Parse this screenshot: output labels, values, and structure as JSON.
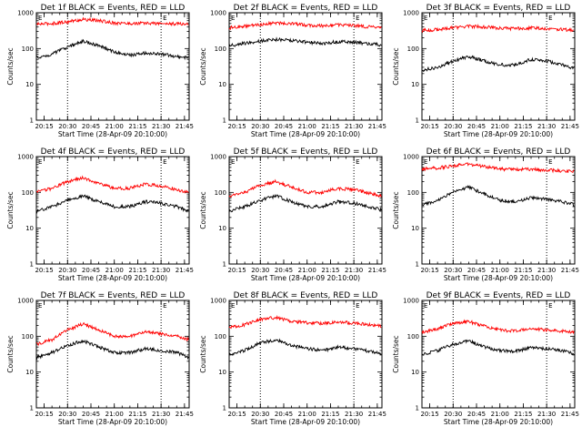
{
  "figure": {
    "rows": 3,
    "cols": 3
  },
  "chart_data": [
    {
      "type": "line",
      "title": "Det 1f BLACK = Events, RED = LLD",
      "xlabel": "Start Time (28-Apr-09 20:10:00)",
      "ylabel": "Counts/sec",
      "yscale": "log",
      "ylim": [
        1,
        1000
      ],
      "xlim_minutes": [
        0,
        98
      ],
      "x_tick_labels": [
        "20:15",
        "20:30",
        "20:45",
        "21:00",
        "21:15",
        "21:30",
        "21:45"
      ],
      "y_tick_labels": [
        "1",
        "10",
        "100",
        "1000"
      ],
      "marker_lines": [
        "20:30",
        "21:30"
      ],
      "corner_markers": [
        "E",
        "E"
      ],
      "x": [
        "20:10",
        "20:20",
        "20:30",
        "20:40",
        "20:50",
        "21:00",
        "21:10",
        "21:20",
        "21:30",
        "21:40",
        "21:48"
      ],
      "series": [
        {
          "color": "#ff0000",
          "values": [
            480,
            500,
            560,
            650,
            600,
            520,
            500,
            510,
            500,
            490,
            480
          ]
        },
        {
          "color": "#000000",
          "values": [
            55,
            70,
            110,
            160,
            120,
            80,
            65,
            75,
            70,
            60,
            55
          ]
        }
      ]
    },
    {
      "type": "line",
      "title": "Det 2f BLACK = Events, RED = LLD",
      "xlabel": "Start Time (28-Apr-09 20:10:00)",
      "ylabel": "Counts/sec",
      "yscale": "log",
      "ylim": [
        1,
        1000
      ],
      "xlim_minutes": [
        0,
        98
      ],
      "x_tick_labels": [
        "20:15",
        "20:30",
        "20:45",
        "21:00",
        "21:15",
        "21:30",
        "21:45"
      ],
      "y_tick_labels": [
        "1",
        "10",
        "100",
        "1000"
      ],
      "marker_lines": [
        "20:30",
        "21:30"
      ],
      "corner_markers": [
        "E",
        "E"
      ],
      "x": [
        "20:10",
        "20:20",
        "20:30",
        "20:40",
        "20:50",
        "21:00",
        "21:10",
        "21:20",
        "21:30",
        "21:40",
        "21:48"
      ],
      "series": [
        {
          "color": "#ff0000",
          "values": [
            380,
            420,
            470,
            520,
            500,
            450,
            430,
            460,
            440,
            400,
            380
          ]
        },
        {
          "color": "#000000",
          "values": [
            120,
            140,
            160,
            180,
            170,
            150,
            140,
            155,
            150,
            135,
            125
          ]
        }
      ]
    },
    {
      "type": "line",
      "title": "Det 3f BLACK = Events, RED = LLD",
      "xlabel": "Start Time (28-Apr-09 20:10:00)",
      "ylabel": "Counts/sec",
      "yscale": "log",
      "ylim": [
        1,
        1000
      ],
      "xlim_minutes": [
        0,
        98
      ],
      "x_tick_labels": [
        "20:15",
        "20:30",
        "20:45",
        "21:00",
        "21:15",
        "21:30",
        "21:45"
      ],
      "y_tick_labels": [
        "1",
        "10",
        "100",
        "1000"
      ],
      "marker_lines": [
        "20:30",
        "21:30"
      ],
      "corner_markers": [
        "E",
        "E"
      ],
      "x": [
        "20:10",
        "20:20",
        "20:30",
        "20:40",
        "20:50",
        "21:00",
        "21:10",
        "21:20",
        "21:30",
        "21:40",
        "21:48"
      ],
      "series": [
        {
          "color": "#ff0000",
          "values": [
            320,
            340,
            380,
            420,
            400,
            370,
            360,
            380,
            360,
            340,
            320
          ]
        },
        {
          "color": "#000000",
          "values": [
            25,
            30,
            45,
            60,
            45,
            35,
            35,
            50,
            45,
            35,
            28
          ]
        }
      ]
    },
    {
      "type": "line",
      "title": "Det 4f BLACK = Events, RED = LLD",
      "xlabel": "Start Time (28-Apr-09 20:10:00)",
      "ylabel": "Counts/sec",
      "yscale": "log",
      "ylim": [
        1,
        1000
      ],
      "xlim_minutes": [
        0,
        98
      ],
      "x_tick_labels": [
        "20:15",
        "20:30",
        "20:45",
        "21:00",
        "21:15",
        "21:30",
        "21:45"
      ],
      "y_tick_labels": [
        "1",
        "10",
        "100",
        "1000"
      ],
      "marker_lines": [
        "20:30",
        "21:30"
      ],
      "corner_markers": [
        "E",
        "E"
      ],
      "x": [
        "20:10",
        "20:20",
        "20:30",
        "20:40",
        "20:50",
        "21:00",
        "21:10",
        "21:20",
        "21:30",
        "21:40",
        "21:48"
      ],
      "series": [
        {
          "color": "#ff0000",
          "values": [
            100,
            130,
            200,
            260,
            180,
            130,
            130,
            170,
            150,
            120,
            100
          ]
        },
        {
          "color": "#000000",
          "values": [
            30,
            40,
            60,
            80,
            55,
            40,
            40,
            55,
            50,
            40,
            30
          ]
        }
      ]
    },
    {
      "type": "line",
      "title": "Det 5f BLACK = Events, RED = LLD",
      "xlabel": "Start Time (28-Apr-09 20:10:00)",
      "ylabel": "Counts/sec",
      "yscale": "log",
      "ylim": [
        1,
        1000
      ],
      "xlim_minutes": [
        0,
        98
      ],
      "x_tick_labels": [
        "20:15",
        "20:30",
        "20:45",
        "21:00",
        "21:15",
        "21:30",
        "21:45"
      ],
      "y_tick_labels": [
        "1",
        "10",
        "100",
        "1000"
      ],
      "marker_lines": [
        "20:30",
        "21:30"
      ],
      "corner_markers": [
        "E",
        "E"
      ],
      "x": [
        "20:10",
        "20:20",
        "20:30",
        "20:40",
        "20:50",
        "21:00",
        "21:10",
        "21:20",
        "21:30",
        "21:40",
        "21:48"
      ],
      "series": [
        {
          "color": "#ff0000",
          "values": [
            80,
            100,
            160,
            200,
            140,
            100,
            100,
            130,
            120,
            95,
            80
          ]
        },
        {
          "color": "#000000",
          "values": [
            30,
            40,
            60,
            80,
            55,
            40,
            40,
            55,
            50,
            40,
            32
          ]
        }
      ]
    },
    {
      "type": "line",
      "title": "Det 6f BLACK = Events, RED = LLD",
      "xlabel": "Start Time (28-Apr-09 20:10:00)",
      "ylabel": "Counts/sec",
      "yscale": "log",
      "ylim": [
        1,
        1000
      ],
      "xlim_minutes": [
        0,
        98
      ],
      "x_tick_labels": [
        "20:15",
        "20:30",
        "20:45",
        "21:00",
        "21:15",
        "21:30",
        "21:45"
      ],
      "y_tick_labels": [
        "1",
        "10",
        "100",
        "1000"
      ],
      "marker_lines": [
        "20:30",
        "21:30"
      ],
      "corner_markers": [
        "E",
        "E"
      ],
      "x": [
        "20:10",
        "20:20",
        "20:30",
        "20:40",
        "20:50",
        "21:00",
        "21:10",
        "21:20",
        "21:30",
        "21:40",
        "21:48"
      ],
      "series": [
        {
          "color": "#ff0000",
          "values": [
            450,
            480,
            550,
            620,
            520,
            450,
            430,
            440,
            420,
            400,
            380
          ]
        },
        {
          "color": "#000000",
          "values": [
            45,
            60,
            100,
            140,
            90,
            60,
            55,
            70,
            65,
            55,
            45
          ]
        }
      ]
    },
    {
      "type": "line",
      "title": "Det 7f BLACK = Events, RED = LLD",
      "xlabel": "Start Time (28-Apr-09 20:10:00)",
      "ylabel": "Counts/sec",
      "yscale": "log",
      "ylim": [
        1,
        1000
      ],
      "xlim_minutes": [
        0,
        98
      ],
      "x_tick_labels": [
        "20:15",
        "20:30",
        "20:45",
        "21:00",
        "21:15",
        "21:30",
        "21:45"
      ],
      "y_tick_labels": [
        "1",
        "10",
        "100",
        "1000"
      ],
      "marker_lines": [
        "20:30",
        "21:30"
      ],
      "corner_markers": [
        "E",
        "E"
      ],
      "x": [
        "20:10",
        "20:20",
        "20:30",
        "20:40",
        "20:50",
        "21:00",
        "21:10",
        "21:20",
        "21:30",
        "21:40",
        "21:48"
      ],
      "series": [
        {
          "color": "#ff0000",
          "values": [
            60,
            80,
            150,
            220,
            150,
            100,
            100,
            130,
            120,
            100,
            80
          ]
        },
        {
          "color": "#000000",
          "values": [
            25,
            35,
            55,
            75,
            50,
            35,
            35,
            45,
            40,
            35,
            25
          ]
        }
      ]
    },
    {
      "type": "line",
      "title": "Det 8f BLACK = Events, RED = LLD",
      "xlabel": "Start Time (28-Apr-09 20:10:00)",
      "ylabel": "Counts/sec",
      "yscale": "log",
      "ylim": [
        1,
        1000
      ],
      "xlim_minutes": [
        0,
        98
      ],
      "x_tick_labels": [
        "20:15",
        "20:30",
        "20:45",
        "21:00",
        "21:15",
        "21:30",
        "21:45"
      ],
      "y_tick_labels": [
        "1",
        "10",
        "100",
        "1000"
      ],
      "marker_lines": [
        "20:30",
        "21:30"
      ],
      "corner_markers": [
        "E",
        "E"
      ],
      "x": [
        "20:10",
        "20:20",
        "20:30",
        "20:40",
        "20:50",
        "21:00",
        "21:10",
        "21:20",
        "21:30",
        "21:40",
        "21:48"
      ],
      "series": [
        {
          "color": "#ff0000",
          "values": [
            180,
            210,
            300,
            330,
            260,
            240,
            230,
            250,
            230,
            210,
            190
          ]
        },
        {
          "color": "#000000",
          "values": [
            30,
            40,
            65,
            80,
            55,
            45,
            40,
            50,
            45,
            38,
            32
          ]
        }
      ]
    },
    {
      "type": "line",
      "title": "Det 9f BLACK = Events, RED = LLD",
      "xlabel": "Start Time (28-Apr-09 20:10:00)",
      "ylabel": "Counts/sec",
      "yscale": "log",
      "ylim": [
        1,
        1000
      ],
      "xlim_minutes": [
        0,
        98
      ],
      "x_tick_labels": [
        "20:15",
        "20:30",
        "20:45",
        "21:00",
        "21:15",
        "21:30",
        "21:45"
      ],
      "y_tick_labels": [
        "1",
        "10",
        "100",
        "1000"
      ],
      "marker_lines": [
        "20:30",
        "21:30"
      ],
      "corner_markers": [
        "E",
        "E"
      ],
      "x": [
        "20:10",
        "20:20",
        "20:30",
        "20:40",
        "20:50",
        "21:00",
        "21:10",
        "21:20",
        "21:30",
        "21:40",
        "21:48"
      ],
      "series": [
        {
          "color": "#ff0000",
          "values": [
            130,
            160,
            230,
            260,
            190,
            150,
            140,
            160,
            150,
            140,
            130
          ]
        },
        {
          "color": "#000000",
          "values": [
            30,
            40,
            60,
            75,
            50,
            40,
            38,
            48,
            45,
            40,
            32
          ]
        }
      ]
    }
  ]
}
